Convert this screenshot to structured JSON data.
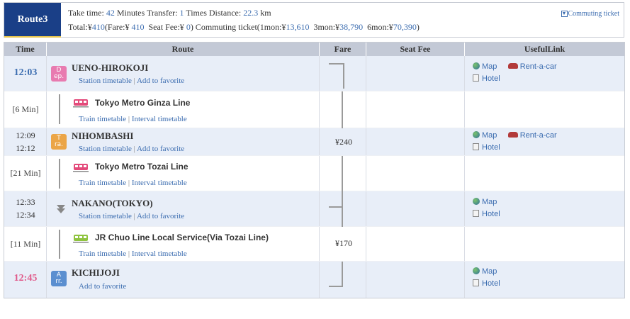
{
  "header": {
    "route_label": "Route3",
    "take_time_label": "Take time:",
    "take_time_value": "42",
    "minutes_label": "Minutes",
    "transfer_label": "Transfer:",
    "transfer_value": "1",
    "times_label": "Times",
    "distance_label": "Distance:",
    "distance_value": "22.3",
    "km_label": "km",
    "total_label": "Total:¥",
    "total_value": "410",
    "fare_label": "(Fare:¥",
    "fare_value": "410",
    "seat_fee_label": "Seat Fee:¥",
    "seat_fee_value": "0",
    "commuting_label": ")  Commuting ticket(1mon:¥",
    "mon1_value": "13,610",
    "mon3_label": "3mon:¥",
    "mon3_value": "38,790",
    "mon6_label": "6mon:¥",
    "mon6_value": "70,390",
    "close_paren": ")",
    "commuting_link": "Commuting ticket"
  },
  "columns": [
    "Time",
    "Route",
    "Fare",
    "Seat Fee",
    "UsefulLink"
  ],
  "links": {
    "station_timetable": "Station timetable",
    "add_favorite": "Add to favorite",
    "train_timetable": "Train timetable",
    "interval_timetable": "Interval timetable",
    "separator": "|",
    "map": "Map",
    "rent_a_car": "Rent-a-car",
    "hotel": "Hotel"
  },
  "stations": [
    {
      "name": "UENO-HIROKOJI",
      "time": "12:03",
      "badge": "Dep.",
      "badge_top": "D",
      "badge_bottom": "ep."
    },
    {
      "name": "NIHOMBASHI",
      "time_arr": "12:09",
      "time_dep": "12:12",
      "badge_top": "T",
      "badge_bottom": "ra."
    },
    {
      "name": "NAKANO(TOKYO)",
      "time_arr": "12:33",
      "time_dep": "12:34"
    },
    {
      "name": "KICHIJOJI",
      "time": "12:45",
      "badge_top": "A",
      "badge_bottom": "rr."
    }
  ],
  "segments": [
    {
      "duration": "[6 Min]",
      "line": "Tokyo Metro Ginza Line"
    },
    {
      "duration": "[21 Min]",
      "line": "Tokyo Metro Tozai Line"
    },
    {
      "duration": "[11 Min]",
      "line": "JR Chuo Line Local Service(Via Tozai Line)"
    }
  ],
  "fares": [
    "¥240",
    "¥170"
  ],
  "colors": {
    "route_tab": "#1a3f87",
    "dep_time": "#3c6db0",
    "arr_time": "#e05a8a",
    "dep_badge": "#e87bb0",
    "transfer_badge": "#eba547",
    "arr_badge": "#5b8fd0",
    "header_row": "#c3c9d6",
    "station_row": "#e8eef8"
  }
}
